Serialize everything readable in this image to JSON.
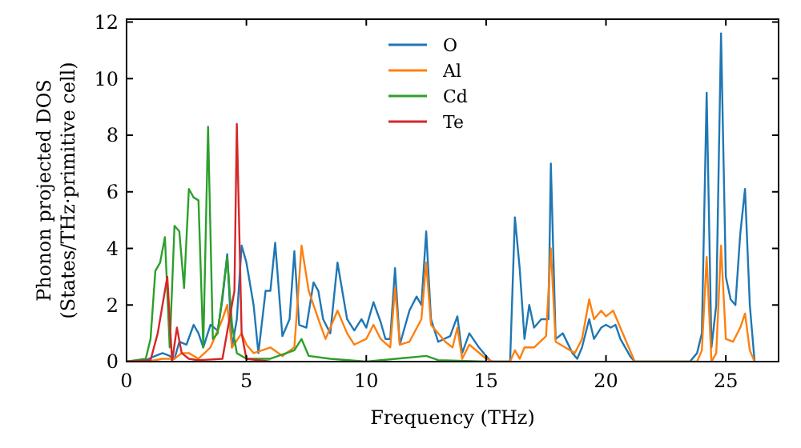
{
  "chart_data": {
    "type": "line",
    "xlabel": "Frequency (THz)",
    "ylabel": "Phonon projected DOS\n(States/THz·primitive cell)",
    "xlim": [
      0,
      27.2
    ],
    "ylim": [
      0,
      12.1
    ],
    "xticks": [
      0,
      5,
      10,
      15,
      20,
      25
    ],
    "yticks": [
      0,
      2,
      4,
      6,
      8,
      10,
      12
    ],
    "legend": "top",
    "grid": false,
    "marker": "none",
    "line_style": "solid",
    "series": [
      {
        "name": "O",
        "color": "#1f77b4",
        "x": [
          0,
          0.8,
          1.2,
          1.5,
          1.8,
          2,
          2.2,
          2.5,
          2.8,
          3,
          3.2,
          3.5,
          3.8,
          4,
          4.2,
          4.4,
          4.6,
          4.8,
          5,
          5.3,
          5.5,
          5.8,
          6,
          6.2,
          6.5,
          6.8,
          7,
          7.2,
          7.5,
          7.8,
          8,
          8.2,
          8.5,
          8.8,
          9.2,
          9.5,
          9.8,
          10,
          10.3,
          10.6,
          10.8,
          11,
          11.2,
          11.4,
          11.8,
          12.1,
          12.3,
          12.5,
          12.7,
          13,
          13.5,
          13.8,
          14,
          14.3,
          14.7,
          15,
          15.2,
          16,
          16.2,
          16.4,
          16.6,
          16.8,
          17,
          17.3,
          17.6,
          17.7,
          17.9,
          18.2,
          18.6,
          18.8,
          19,
          19.3,
          19.5,
          19.8,
          20,
          20.2,
          20.4,
          20.6,
          21,
          21.2,
          23.5,
          23.8,
          24,
          24.2,
          24.4,
          24.6,
          24.8,
          25,
          25.2,
          25.4,
          25.6,
          25.8,
          26,
          26.2
        ],
        "values": [
          0,
          0.05,
          0.2,
          0.3,
          0.2,
          0.1,
          0.7,
          0.6,
          1.3,
          1,
          0.5,
          1.3,
          1.1,
          2.2,
          3.8,
          0.5,
          1.5,
          4.1,
          3.5,
          2,
          0.3,
          2.5,
          2.5,
          4.2,
          0.9,
          1.5,
          3.9,
          1.3,
          1.2,
          2.8,
          2.5,
          1.5,
          1,
          3.5,
          1.5,
          1.1,
          1.5,
          1.2,
          2.1,
          1.4,
          0.8,
          0.8,
          3.3,
          0.6,
          1.8,
          2.3,
          2,
          4.6,
          1.5,
          0.7,
          0.9,
          1.6,
          0.3,
          1,
          0.5,
          0.2,
          0,
          0,
          5.1,
          3.3,
          0.8,
          2,
          1.2,
          1.5,
          1.5,
          7,
          0.8,
          1,
          0.3,
          0.1,
          0.5,
          1.5,
          0.8,
          1.2,
          1.3,
          1.2,
          1.3,
          0.8,
          0.2,
          0,
          0,
          0.3,
          1,
          9.5,
          0.5,
          2,
          11.6,
          3,
          2.2,
          2,
          4.5,
          6.1,
          2,
          0
        ]
      },
      {
        "name": "Al",
        "color": "#ff7f0e",
        "x": [
          0,
          1,
          1.5,
          2,
          2.3,
          2.6,
          3,
          3.5,
          4,
          4.2,
          4.4,
          4.8,
          5,
          5.3,
          6,
          6.5,
          7,
          7.3,
          7.6,
          8,
          8.3,
          8.8,
          9.2,
          9.5,
          10,
          10.3,
          10.6,
          11,
          11.2,
          11.4,
          11.8,
          12.3,
          12.5,
          12.7,
          13.3,
          13.6,
          13.8,
          14,
          14.3,
          15,
          15.3,
          16,
          16.2,
          16.4,
          16.6,
          17,
          17.5,
          17.7,
          17.9,
          18.3,
          18.7,
          19,
          19.3,
          19.5,
          19.8,
          20,
          20.3,
          20.5,
          20.8,
          21.2,
          23.8,
          24,
          24.2,
          24.4,
          24.6,
          24.8,
          25,
          25.3,
          25.6,
          25.8,
          26,
          26.2
        ],
        "values": [
          0,
          0.02,
          0.1,
          0.1,
          0.3,
          0.3,
          0.1,
          0.5,
          1.5,
          2,
          0.5,
          1,
          0.6,
          0.3,
          0.5,
          0.2,
          0.5,
          4.1,
          2.5,
          1.5,
          0.8,
          1.8,
          1,
          0.6,
          0.8,
          1.3,
          0.8,
          0.5,
          2.6,
          0.6,
          0.7,
          1.5,
          3.5,
          1.3,
          0.7,
          0.5,
          1.2,
          0.1,
          0.6,
          0.1,
          0,
          0,
          0.4,
          0.1,
          0.5,
          0.5,
          0.9,
          4,
          0.7,
          0.5,
          0.3,
          0.8,
          2.2,
          1.5,
          1.8,
          1.6,
          1.8,
          1.4,
          0.8,
          0,
          0,
          0.4,
          3.7,
          0,
          0.3,
          4.1,
          0.8,
          0.7,
          1.2,
          1.7,
          0.4,
          0
        ]
      },
      {
        "name": "Cd",
        "color": "#2ca02c",
        "x": [
          0,
          0.8,
          1,
          1.2,
          1.4,
          1.6,
          1.8,
          2,
          2.2,
          2.4,
          2.6,
          2.8,
          3,
          3.2,
          3.4,
          3.6,
          3.8,
          4.2,
          4.4,
          4.6,
          5,
          6,
          7,
          7.3,
          7.6,
          8.5,
          10,
          12.5,
          13,
          15
        ],
        "values": [
          0,
          0.1,
          0.8,
          3.2,
          3.5,
          4.4,
          0.5,
          4.8,
          4.6,
          2.6,
          6.1,
          5.8,
          5.7,
          0.5,
          8.3,
          0.8,
          1,
          3.7,
          1.3,
          0.3,
          0.1,
          0.1,
          0.4,
          0.8,
          0.2,
          0.1,
          0,
          0.2,
          0.05,
          0
        ]
      },
      {
        "name": "Te",
        "color": "#d62728",
        "x": [
          0,
          1,
          1.3,
          1.5,
          1.7,
          1.9,
          2.1,
          2.3,
          2.6,
          3,
          4,
          4.5,
          4.6,
          4.8,
          5,
          6
        ],
        "values": [
          0,
          0.05,
          1,
          2,
          3,
          0,
          1.2,
          0.3,
          0.1,
          0.05,
          0.1,
          2.5,
          8.4,
          1,
          0.1,
          0
        ]
      }
    ]
  }
}
